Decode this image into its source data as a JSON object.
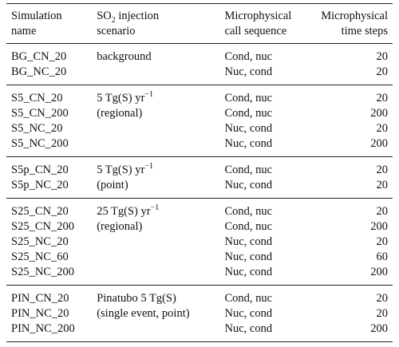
{
  "table": {
    "header": {
      "name": [
        "Simulation",
        "name"
      ],
      "scenario": {
        "main": "SO",
        "sub": "2",
        "rest": "injection",
        "line2": "scenario"
      },
      "sequence": [
        "Microphysical",
        "call sequence"
      ],
      "steps": [
        "Microphysical",
        "time steps"
      ]
    },
    "groups": [
      {
        "rows": [
          {
            "name": "BG_CN_20",
            "scenario": "background",
            "sequence": "Cond, nuc",
            "steps": 20
          },
          {
            "name": "BG_NC_20",
            "sequence": "Nuc, cond",
            "steps": 20
          }
        ]
      },
      {
        "rows": [
          {
            "name": "S5_CN_20",
            "scenario": "5 Tg(S) yr",
            "scenario_sup": "−1",
            "sequence": "Cond, nuc",
            "steps": 20
          },
          {
            "name": "S5_CN_200",
            "scenario": "(regional)",
            "sequence": "Cond, nuc",
            "steps": 200
          },
          {
            "name": "S5_NC_20",
            "sequence": "Nuc, cond",
            "steps": 20
          },
          {
            "name": "S5_NC_200",
            "sequence": "Nuc, cond",
            "steps": 200
          }
        ]
      },
      {
        "rows": [
          {
            "name": "S5p_CN_20",
            "scenario": "5 Tg(S) yr",
            "scenario_sup": "−1",
            "sequence": "Cond, nuc",
            "steps": 20
          },
          {
            "name": "S5p_NC_20",
            "scenario": "(point)",
            "sequence": "Nuc, cond",
            "steps": 20
          }
        ]
      },
      {
        "rows": [
          {
            "name": "S25_CN_20",
            "scenario": "25 Tg(S) yr",
            "scenario_sup": "−1",
            "sequence": "Cond, nuc",
            "steps": 20
          },
          {
            "name": "S25_CN_200",
            "scenario": "(regional)",
            "sequence": "Cond, nuc",
            "steps": 200
          },
          {
            "name": "S25_NC_20",
            "sequence": "Nuc, cond",
            "steps": 20
          },
          {
            "name": "S25_NC_60",
            "sequence": "Nuc, cond",
            "steps": 60
          },
          {
            "name": "S25_NC_200",
            "sequence": "Nuc, cond",
            "steps": 200
          }
        ]
      },
      {
        "rows": [
          {
            "name": "PIN_CN_20",
            "scenario": "Pinatubo 5 Tg(S)",
            "sequence": "Cond, nuc",
            "steps": 20
          },
          {
            "name": "PIN_NC_20",
            "scenario": "(single event, point)",
            "sequence": "Nuc, cond",
            "steps": 20
          },
          {
            "name": "PIN_NC_200",
            "sequence": "Nuc, cond",
            "steps": 200
          }
        ]
      }
    ]
  }
}
